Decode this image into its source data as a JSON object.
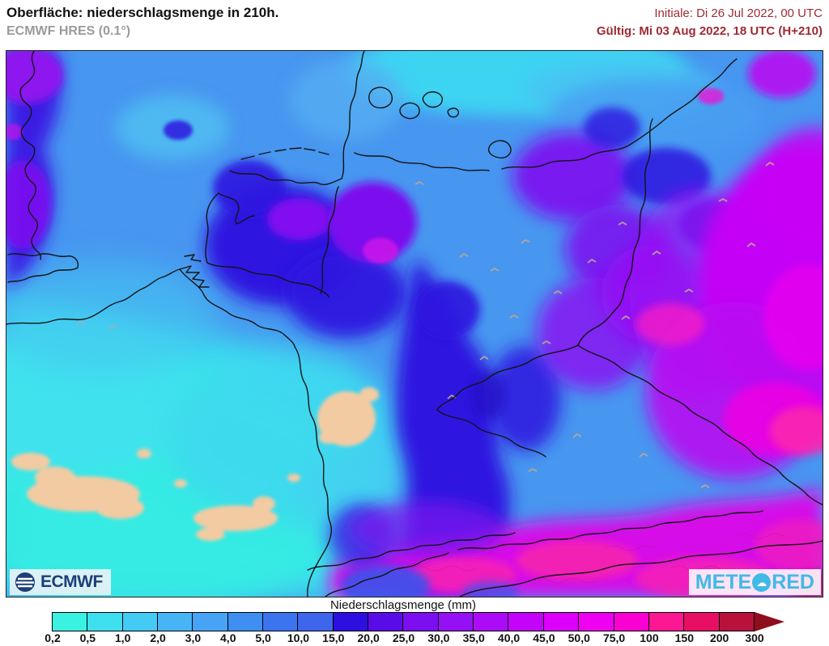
{
  "header": {
    "title": "Oberfläche: niederschlagsmenge in 210h.",
    "subtitle": "ECMWF HRES (0.1°)",
    "init_line": "Initiale: Di 26 Jul 2022, 00 UTC",
    "valid_line": "Gültig: Mi 03 Aug 2022, 18 UTC (H+210)"
  },
  "branding": {
    "ecmwf_label": "ECMWF",
    "meteored_part1": "METE",
    "meteored_part2": "RED"
  },
  "legend": {
    "title": "Niederschlagsmenge (mm)",
    "tick_labels": [
      "0,2",
      "0,5",
      "1,0",
      "2,0",
      "3,0",
      "4,0",
      "5,0",
      "10,0",
      "15,0",
      "20,0",
      "25,0",
      "30,0",
      "35,0",
      "40,0",
      "45,0",
      "50,0",
      "75,0",
      "100",
      "150",
      "200",
      "300"
    ],
    "tick_values_mm": [
      0.2,
      0.5,
      1,
      2,
      3,
      4,
      5,
      10,
      15,
      20,
      25,
      30,
      35,
      40,
      45,
      50,
      75,
      100,
      150,
      200,
      300
    ],
    "cell_colors": [
      "#3BF2E2",
      "#3EE0F0",
      "#43CBF5",
      "#47B5F5",
      "#47A3F6",
      "#3F8EF2",
      "#3B74EE",
      "#3D66EC",
      "#2D10DF",
      "#5A0CE8",
      "#7C0EF0",
      "#9510F4",
      "#AC0BF7",
      "#C303FA",
      "#DC00FA",
      "#EE00F0",
      "#FA00D2",
      "#FC1793",
      "#E80F62",
      "#B8113B"
    ],
    "overflow_arrow_color": "#8E0E1D"
  },
  "colors": {
    "title_text": "#111111",
    "subtitle_text": "#9B9B9B",
    "datetime_text": "#9F2A33",
    "ecmwf_navy": "#1B3F77",
    "meteored_blue": "#41B9E6",
    "nodata_beige": "#F3CBA3",
    "map_border": "#222222"
  }
}
